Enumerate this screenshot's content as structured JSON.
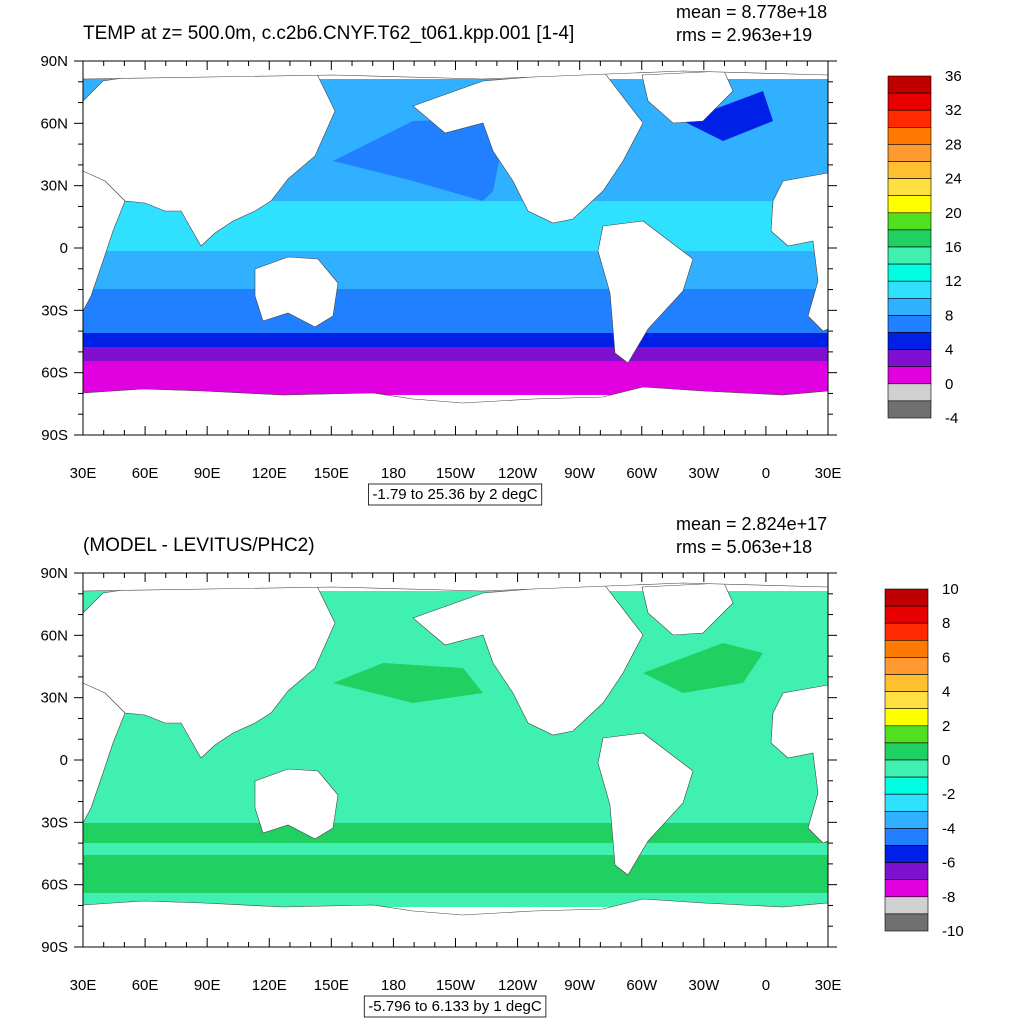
{
  "x_labels": [
    "30E",
    "60E",
    "90E",
    "120E",
    "150E",
    "180",
    "150W",
    "120W",
    "90W",
    "60W",
    "30W",
    "0",
    "30E"
  ],
  "y_labels": [
    "90N",
    "60N",
    "30N",
    "0",
    "30S",
    "60S",
    "90S"
  ],
  "panels": [
    {
      "title": "TEMP at z= 500.0m, c.c2b6.CNYF.T62_t061.kpp.001 [1-4]",
      "mean": "mean = 8.778e+18",
      "rms": "rms = 2.963e+19",
      "info": "-1.79 to 25.36 by 2 degC",
      "colorbar": {
        "labels": [
          36,
          32,
          28,
          24,
          20,
          16,
          12,
          8,
          4,
          0,
          -4
        ],
        "colors": [
          "#c00000",
          "#e80000",
          "#ff2a00",
          "#ff7a00",
          "#ff9a30",
          "#ffc030",
          "#ffe040",
          "#ffff00",
          "#50e020",
          "#20d060",
          "#40f0b0",
          "#00ffe0",
          "#30e0ff",
          "#30b0ff",
          "#2080ff",
          "#0020e8",
          "#8010d0",
          "#e000e0",
          "#d0d0d0",
          "#707070"
        ]
      }
    },
    {
      "title": "(MODEL - LEVITUS/PHC2)",
      "mean": "mean = 2.824e+17",
      "rms": "rms = 5.063e+18",
      "info": "-5.796 to 6.133 by 1 degC",
      "colorbar": {
        "labels": [
          10,
          8,
          6,
          4,
          2,
          0,
          -2,
          -4,
          -6,
          -8,
          -10
        ],
        "colors": [
          "#c00000",
          "#e80000",
          "#ff2a00",
          "#ff7a00",
          "#ff9a30",
          "#ffc030",
          "#ffe040",
          "#ffff00",
          "#50e020",
          "#20d060",
          "#40f0b0",
          "#00ffe0",
          "#30e0ff",
          "#30b0ff",
          "#2080ff",
          "#0020e8",
          "#8010d0",
          "#e000e0",
          "#d0d0d0",
          "#707070"
        ]
      }
    }
  ]
}
